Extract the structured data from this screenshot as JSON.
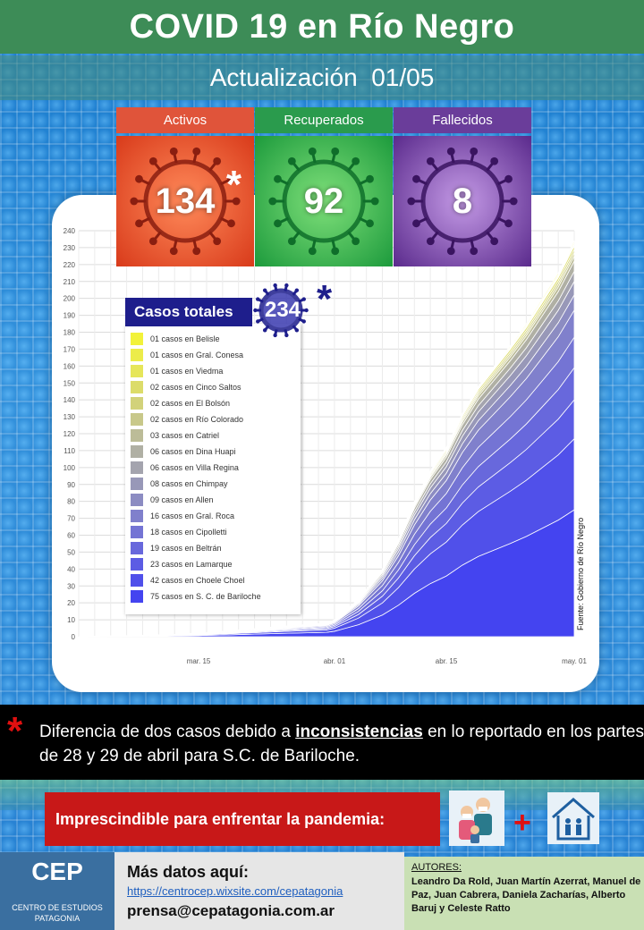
{
  "header": {
    "title": "COVID 19 en Río Negro",
    "update_label": "Actualización",
    "update_date": "01/05"
  },
  "stats": {
    "active": {
      "label": "Activos",
      "value": "134",
      "asterisk": "*",
      "color": "#e0543a"
    },
    "recovered": {
      "label": "Recuperados",
      "value": "92",
      "color": "#2a9b4d"
    },
    "deceased": {
      "label": "Fallecidos",
      "value": "8",
      "color": "#6a3d9a"
    }
  },
  "total": {
    "label": "Casos totales",
    "value": "234",
    "asterisk": "*"
  },
  "source": "Fuente: Gobierno de Río Negro",
  "note": {
    "star": "*",
    "text_before": "Diferencia de dos casos debido a ",
    "emphasis": "inconsistencias",
    "text_after": " en lo reportado en los partes de 28 y 29 de abril para S.C. de Bariloche."
  },
  "banner": {
    "text": "Imprescindible para enfrentar la pandemia:",
    "plus": "+"
  },
  "footer": {
    "logo_big": "CEP",
    "logo_small_1": "CENTRO DE ESTUDIOS",
    "logo_small_2": "PATAGONIA",
    "more_label": "Más datos aquí:",
    "link": "https://centrocep.wixsite.com/cepatagonia",
    "email": "prensa@cepatagonia.com.ar",
    "authors_label": "AUTORES:",
    "authors": "Leandro Da Rold, Juan Martín Azerrat, Manuel de Paz, Juan Cabrera, Daniela Zacharías, Alberto Baruj y Celeste Ratto"
  },
  "chart_data": {
    "type": "area",
    "stacked": true,
    "ylim": [
      0,
      240
    ],
    "yticks": [
      0,
      10,
      20,
      30,
      40,
      50,
      60,
      70,
      80,
      90,
      100,
      110,
      120,
      130,
      140,
      150,
      160,
      170,
      180,
      190,
      200,
      210,
      220,
      230,
      240
    ],
    "xticks": [
      {
        "label": "mar. 15",
        "day": 15
      },
      {
        "label": "abr. 01",
        "day": 32
      },
      {
        "label": "abr. 15",
        "day": 46
      },
      {
        "label": "may. 01",
        "day": 62
      }
    ],
    "xlim": [
      0,
      62
    ],
    "grid": true,
    "legend_position": "top-left",
    "days": [
      0,
      10,
      15,
      20,
      25,
      28,
      31,
      32,
      35,
      38,
      40,
      42,
      44,
      46,
      48,
      50,
      52,
      54,
      56,
      58,
      60,
      62
    ],
    "totals": [
      0,
      1,
      2,
      4,
      6,
      7,
      8,
      10,
      22,
      40,
      58,
      80,
      98,
      112,
      132,
      148,
      160,
      172,
      185,
      200,
      215,
      234
    ],
    "series": [
      {
        "name": "01 casos en Belisle",
        "final": 1,
        "color": "#f2f23a"
      },
      {
        "name": "01 casos en Gral. Conesa",
        "final": 1,
        "color": "#ecec4a"
      },
      {
        "name": "01 casos en Viedma",
        "final": 1,
        "color": "#e6e65a"
      },
      {
        "name": "02 casos en Cinco Saltos",
        "final": 2,
        "color": "#dcdc6a"
      },
      {
        "name": "02 casos en El Bolsón",
        "final": 2,
        "color": "#d2d27a"
      },
      {
        "name": "02 casos en Río Colorado",
        "final": 2,
        "color": "#c8c88a"
      },
      {
        "name": "03 casos en Catriel",
        "final": 3,
        "color": "#bcbc98"
      },
      {
        "name": "06 casos en Dina Huapi",
        "final": 6,
        "color": "#b0b0a4"
      },
      {
        "name": "06 casos en Villa Regina",
        "final": 6,
        "color": "#a4a4ae"
      },
      {
        "name": "08 casos en Chimpay",
        "final": 8,
        "color": "#9898b8"
      },
      {
        "name": "09 casos en Allen",
        "final": 9,
        "color": "#8c8cc2"
      },
      {
        "name": "16 casos en Gral. Roca",
        "final": 16,
        "color": "#8080cc"
      },
      {
        "name": "18 casos en Cipolletti",
        "final": 18,
        "color": "#7474d4"
      },
      {
        "name": "19 casos en Beltrán",
        "final": 19,
        "color": "#6868dc"
      },
      {
        "name": "23 casos en Lamarque",
        "final": 23,
        "color": "#5c5ce4"
      },
      {
        "name": "42 casos en Choele Choel",
        "final": 42,
        "color": "#5050ea"
      },
      {
        "name": "75 casos en S. C. de Bariloche",
        "final": 75,
        "color": "#4444f0"
      }
    ]
  }
}
